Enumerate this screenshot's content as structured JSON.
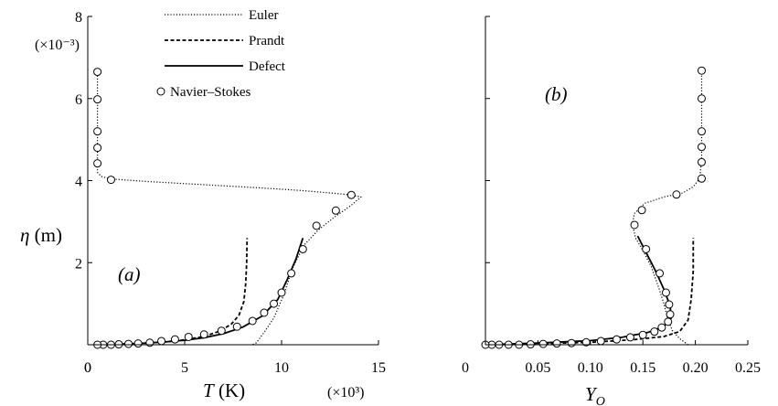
{
  "chart_data": [
    {
      "panel": "(a)",
      "type": "line",
      "xlabel_sym": "T",
      "xlabel_unit": " (K)",
      "x_multiplier": "(×10³)",
      "ylabel_sym": "η",
      "ylabel_unit": " (m)",
      "y_multiplier": "(×10⁻³)",
      "xlim": [
        0,
        15
      ],
      "ylim": [
        0,
        8
      ],
      "xticks": [
        0,
        5,
        10,
        15
      ],
      "yticks": [
        2,
        4,
        6,
        8
      ],
      "legend_position": "top-center",
      "series": [
        {
          "name": "Euler",
          "style": "dotted",
          "points": [
            [
              0.5,
              6.7
            ],
            [
              0.5,
              4.6
            ],
            [
              0.5,
              4.2
            ],
            [
              0.7,
              4.1
            ],
            [
              1.2,
              4.04
            ],
            [
              3,
              3.98
            ],
            [
              6,
              3.9
            ],
            [
              9,
              3.82
            ],
            [
              11,
              3.76
            ],
            [
              12.5,
              3.7
            ],
            [
              13.4,
              3.66
            ],
            [
              14.1,
              3.6
            ],
            [
              13.6,
              3.4
            ],
            [
              12.7,
              3.1
            ],
            [
              11.9,
              2.8
            ],
            [
              11.2,
              2.45
            ],
            [
              10.6,
              1.9
            ],
            [
              10.1,
              1.2
            ],
            [
              9.6,
              0.65
            ],
            [
              9.1,
              0.3
            ],
            [
              8.7,
              0.05
            ],
            [
              8.5,
              0.0
            ]
          ]
        },
        {
          "name": "Prandt",
          "style": "dashed",
          "points": [
            [
              0.5,
              0.0
            ],
            [
              1,
              0.01
            ],
            [
              2,
              0.02
            ],
            [
              3,
              0.04
            ],
            [
              4,
              0.07
            ],
            [
              5,
              0.12
            ],
            [
              6,
              0.2
            ],
            [
              6.8,
              0.33
            ],
            [
              7.4,
              0.5
            ],
            [
              7.8,
              0.72
            ],
            [
              8.05,
              1.05
            ],
            [
              8.15,
              1.5
            ],
            [
              8.2,
              2.0
            ],
            [
              8.22,
              2.6
            ]
          ]
        },
        {
          "name": "Defect",
          "style": "solid",
          "points": [
            [
              0.5,
              0.0
            ],
            [
              1,
              0.01
            ],
            [
              2,
              0.02
            ],
            [
              3,
              0.04
            ],
            [
              4,
              0.07
            ],
            [
              5,
              0.11
            ],
            [
              6,
              0.17
            ],
            [
              7,
              0.27
            ],
            [
              8,
              0.43
            ],
            [
              9,
              0.7
            ],
            [
              9.8,
              1.1
            ],
            [
              10.3,
              1.6
            ],
            [
              10.75,
              2.1
            ],
            [
              11.1,
              2.6
            ]
          ]
        },
        {
          "name": "Navier–Stokes",
          "style": "circles",
          "points": [
            [
              0.5,
              6.65
            ],
            [
              0.5,
              5.98
            ],
            [
              0.5,
              5.2
            ],
            [
              0.5,
              4.8
            ],
            [
              0.5,
              4.42
            ],
            [
              1.2,
              4.02
            ],
            [
              13.6,
              3.65
            ],
            [
              12.8,
              3.27
            ],
            [
              11.8,
              2.9
            ],
            [
              11.1,
              2.33
            ],
            [
              10.5,
              1.74
            ],
            [
              10.0,
              1.27
            ],
            [
              9.6,
              1.0
            ],
            [
              9.1,
              0.78
            ],
            [
              8.5,
              0.58
            ],
            [
              7.7,
              0.44
            ],
            [
              6.9,
              0.34
            ],
            [
              6.0,
              0.25
            ],
            [
              5.2,
              0.19
            ],
            [
              4.5,
              0.13
            ],
            [
              3.8,
              0.09
            ],
            [
              3.2,
              0.05
            ],
            [
              2.6,
              0.03
            ],
            [
              2.1,
              0.02
            ],
            [
              1.6,
              0.01
            ],
            [
              1.2,
              0.0
            ],
            [
              0.8,
              0.0
            ],
            [
              0.5,
              0.0
            ]
          ]
        }
      ]
    },
    {
      "panel": "(b)",
      "type": "line",
      "xlabel_sym": "Y",
      "xlabel_sub": "O",
      "xlim": [
        0,
        0.25
      ],
      "ylim": [
        0,
        8
      ],
      "xticks": [
        0,
        0.05,
        0.1,
        0.15,
        0.2,
        0.25
      ],
      "xtick_labels": [
        "0",
        "0.05",
        "0.10",
        "0.15",
        "0.20",
        "0.25"
      ],
      "yticks": [
        2,
        4,
        6,
        8
      ],
      "series": [
        {
          "name": "Euler",
          "style": "dotted",
          "points": [
            [
              0.206,
              6.7
            ],
            [
              0.206,
              4.5
            ],
            [
              0.204,
              4.05
            ],
            [
              0.198,
              3.85
            ],
            [
              0.188,
              3.7
            ],
            [
              0.17,
              3.6
            ],
            [
              0.152,
              3.45
            ],
            [
              0.142,
              3.2
            ],
            [
              0.14,
              2.95
            ],
            [
              0.143,
              2.6
            ],
            [
              0.15,
              2.3
            ],
            [
              0.158,
              1.9
            ],
            [
              0.165,
              1.4
            ],
            [
              0.17,
              1.0
            ],
            [
              0.174,
              0.6
            ],
            [
              0.178,
              0.35
            ],
            [
              0.185,
              0.15
            ],
            [
              0.193,
              0.0
            ]
          ]
        },
        {
          "name": "Prandt",
          "style": "dashed",
          "points": [
            [
              0.0,
              0.0
            ],
            [
              0.05,
              0.02
            ],
            [
              0.1,
              0.06
            ],
            [
              0.14,
              0.12
            ],
            [
              0.17,
              0.2
            ],
            [
              0.185,
              0.32
            ],
            [
              0.193,
              0.6
            ],
            [
              0.196,
              1.1
            ],
            [
              0.198,
              1.8
            ],
            [
              0.198,
              2.6
            ]
          ]
        },
        {
          "name": "Defect",
          "style": "solid",
          "points": [
            [
              0.0,
              0.0
            ],
            [
              0.05,
              0.04
            ],
            [
              0.1,
              0.1
            ],
            [
              0.13,
              0.18
            ],
            [
              0.155,
              0.3
            ],
            [
              0.17,
              0.45
            ],
            [
              0.177,
              0.65
            ],
            [
              0.176,
              0.95
            ],
            [
              0.17,
              1.35
            ],
            [
              0.162,
              1.8
            ],
            [
              0.152,
              2.3
            ],
            [
              0.145,
              2.65
            ]
          ]
        },
        {
          "name": "Navier–Stokes",
          "style": "circles",
          "points": [
            [
              0.206,
              6.68
            ],
            [
              0.206,
              6.0
            ],
            [
              0.206,
              5.2
            ],
            [
              0.206,
              4.82
            ],
            [
              0.206,
              4.45
            ],
            [
              0.206,
              4.05
            ],
            [
              0.182,
              3.66
            ],
            [
              0.149,
              3.28
            ],
            [
              0.142,
              2.92
            ],
            [
              0.153,
              2.33
            ],
            [
              0.166,
              1.74
            ],
            [
              0.172,
              1.27
            ],
            [
              0.175,
              0.98
            ],
            [
              0.176,
              0.74
            ],
            [
              0.174,
              0.56
            ],
            [
              0.168,
              0.42
            ],
            [
              0.161,
              0.32
            ],
            [
              0.15,
              0.24
            ],
            [
              0.138,
              0.18
            ],
            [
              0.125,
              0.13
            ],
            [
              0.11,
              0.09
            ],
            [
              0.096,
              0.06
            ],
            [
              0.082,
              0.04
            ],
            [
              0.068,
              0.03
            ],
            [
              0.055,
              0.02
            ],
            [
              0.043,
              0.01
            ],
            [
              0.032,
              0.0
            ],
            [
              0.022,
              0.0
            ],
            [
              0.013,
              0.0
            ],
            [
              0.006,
              0.0
            ],
            [
              0.0,
              0.0
            ]
          ]
        }
      ]
    }
  ]
}
